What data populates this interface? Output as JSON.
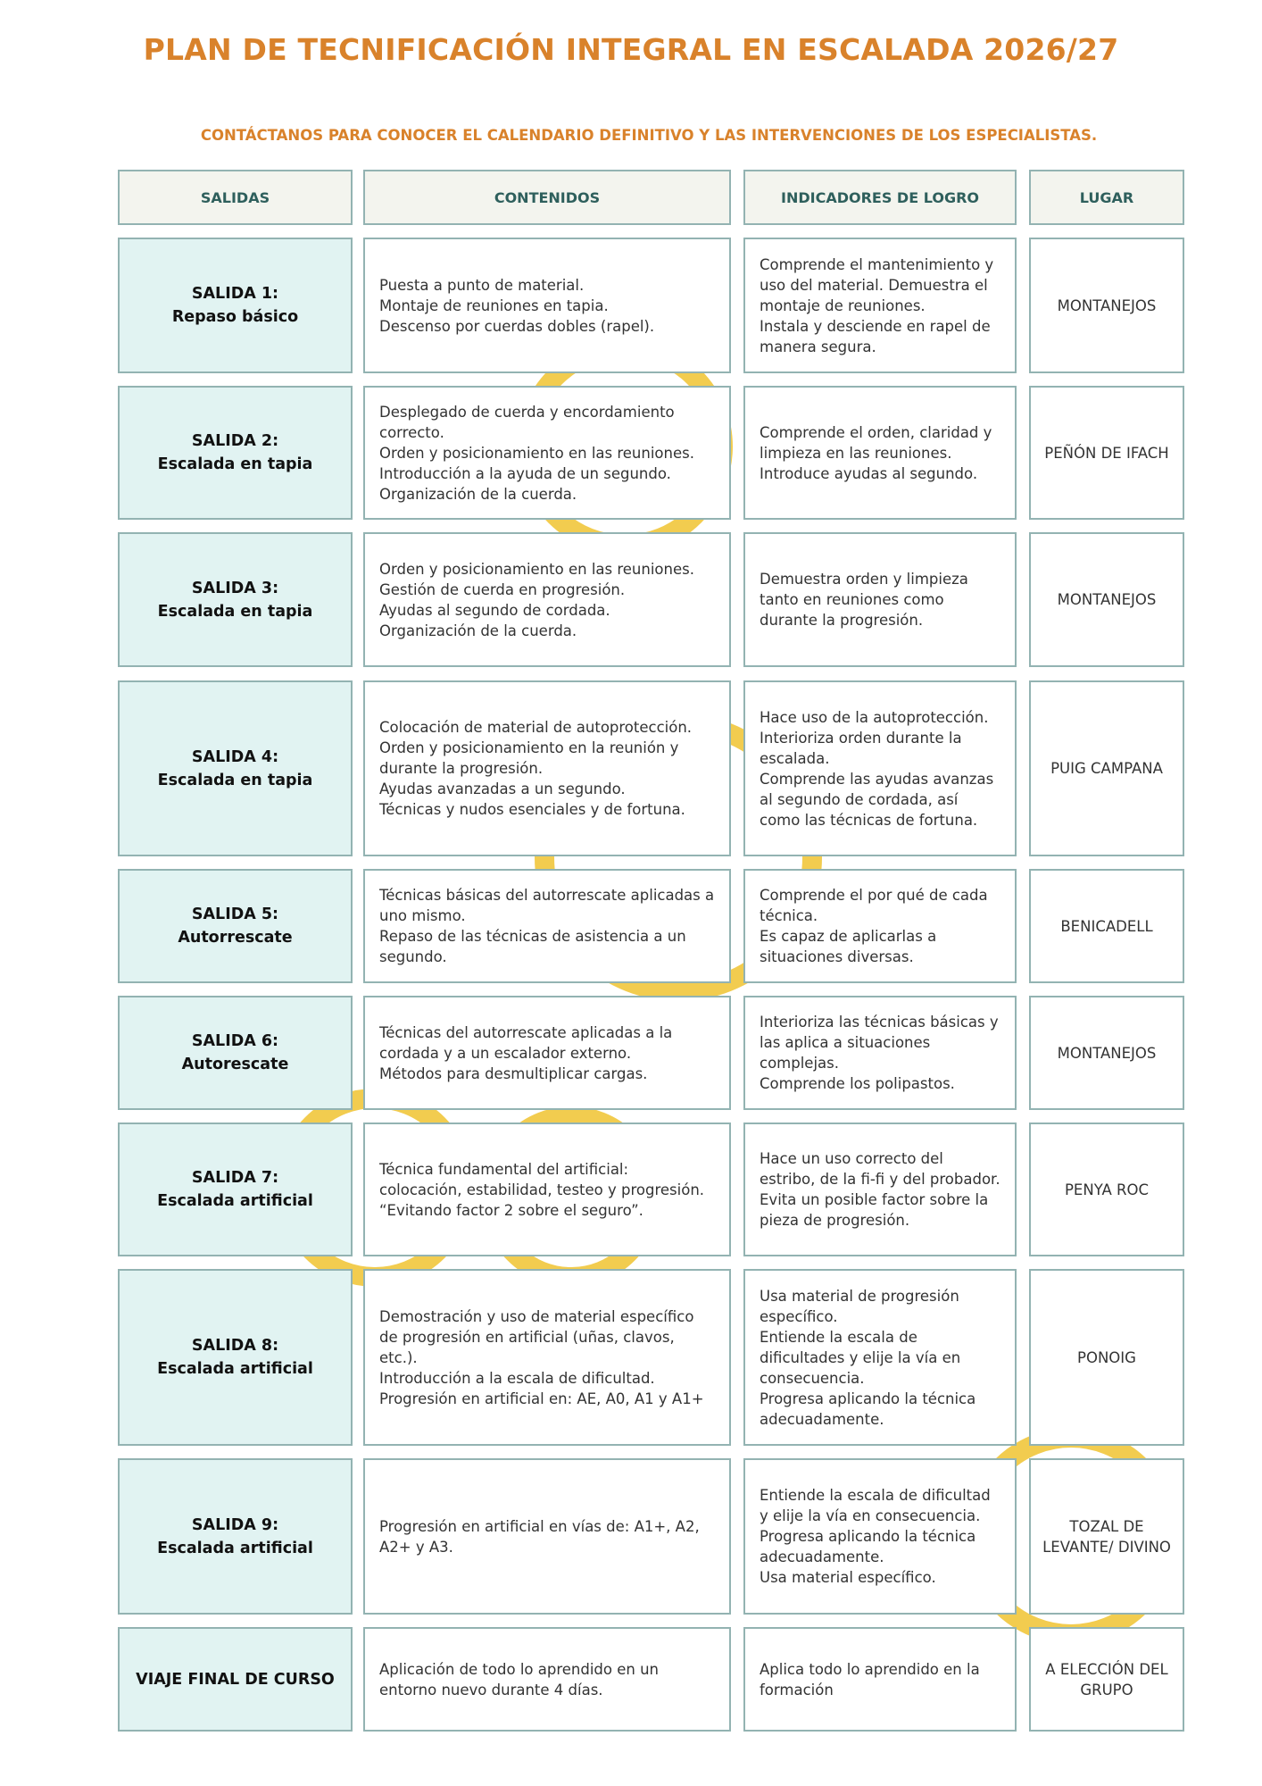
{
  "title": "PLAN DE TECNIFICACIÓN INTEGRAL EN ESCALADA 2026/27",
  "subtitle": "CONTÁCTANOS PARA CONOCER EL CALENDARIO DEFINITIVO Y LAS INTERVENCIONES DE LOS ESPECIALISTAS.",
  "colors": {
    "accent": "#d9822b",
    "header_text": "#2e5f5c",
    "header_bg": "#f3f4ee",
    "name_bg": "#e1f3f2",
    "border": "#93b3b2",
    "decoration": "#f2cc4f"
  },
  "headers": [
    "SALIDAS",
    "CONTENIDOS",
    "INDICADORES DE LOGRO",
    "LUGAR"
  ],
  "rows": [
    {
      "name": "SALIDA 1:\nRepaso básico",
      "contenidos": "Puesta a punto de material.\nMontaje de reuniones en tapia.\nDescenso por cuerdas dobles (rapel).",
      "indicadores": "Comprende el mantenimiento y uso del material. Demuestra el montaje de reuniones.\nInstala y desciende en rapel de manera segura.",
      "lugar": "MONTANEJOS"
    },
    {
      "name": "SALIDA 2:\nEscalada en tapia",
      "contenidos": "Desplegado de cuerda y encordamiento correcto.\nOrden y posicionamiento en las reuniones.\nIntroducción a la ayuda de un segundo.\nOrganización de la cuerda.",
      "indicadores": "Comprende el orden, claridad y limpieza en las reuniones.\nIntroduce ayudas al segundo.",
      "lugar": "PEÑÓN DE IFACH"
    },
    {
      "name": "SALIDA 3:\nEscalada en tapia",
      "contenidos": "Orden y posicionamiento en las reuniones.\nGestión de cuerda en progresión.\nAyudas al segundo de cordada.\nOrganización de la cuerda.",
      "indicadores": "Demuestra orden y limpieza tanto en reuniones como durante la progresión.",
      "lugar": "MONTANEJOS"
    },
    {
      "name": "SALIDA 4:\nEscalada en tapia",
      "contenidos": "Colocación de material de autoprotección.\nOrden y posicionamiento en la reunión y durante la progresión.\nAyudas avanzadas a un segundo.\nTécnicas y nudos esenciales y de fortuna.",
      "indicadores": "Hace uso de la autoprotección.\nInterioriza orden durante la escalada.\nComprende las ayudas avanzas al segundo de cordada, así como las técnicas de fortuna.",
      "lugar": "PUIG CAMPANA"
    },
    {
      "name": "SALIDA 5:\nAutorrescate",
      "contenidos": "Técnicas básicas del autorrescate aplicadas a uno mismo.\nRepaso de las técnicas de asistencia a un segundo.",
      "indicadores": "Comprende el por qué de cada técnica.\nEs capaz de aplicarlas a situaciones diversas.",
      "lugar": "BENICADELL"
    },
    {
      "name": "SALIDA 6:\nAutorescate",
      "contenidos": "Técnicas del autorrescate aplicadas a la cordada y a un escalador externo.\nMétodos para desmultiplicar cargas.",
      "indicadores": "Interioriza las técnicas básicas y las aplica a situaciones complejas.\nComprende los polipastos.",
      "lugar": "MONTANEJOS"
    },
    {
      "name": "SALIDA 7:\nEscalada artificial",
      "contenidos": "Técnica fundamental del artificial: colocación, estabilidad, testeo y progresión.\n“Evitando factor 2 sobre el seguro”.",
      "indicadores": "Hace un uso correcto del estribo, de la fi-fi y del probador.\nEvita un posible factor sobre la pieza de progresión.",
      "lugar": "PENYA ROC"
    },
    {
      "name": "SALIDA 8:\nEscalada artificial",
      "contenidos": "Demostración y uso de material específico de progresión en artificial (uñas, clavos, etc.).\nIntroducción a la escala de dificultad.\nProgresión en artificial en: AE, A0, A1 y A1+",
      "indicadores": "Usa material de progresión específico.\nEntiende la escala de dificultades y elije la vía en consecuencia.\nProgresa aplicando la técnica adecuadamente.",
      "lugar": "PONOIG"
    },
    {
      "name": "SALIDA 9:\nEscalada artificial",
      "contenidos": "Progresión en artificial en vías de: A1+, A2, A2+ y A3.",
      "indicadores": "Entiende la escala de dificultad y elije la vía en consecuencia.\nProgresa aplicando la técnica adecuadamente.\nUsa material específico.",
      "lugar": "TOZAL DE LEVANTE/ DIVINO"
    },
    {
      "name": "VIAJE FINAL DE CURSO",
      "contenidos": "Aplicación de todo lo aprendido en un entorno nuevo durante 4 días.",
      "indicadores": "Aplica todo lo aprendido en la formación",
      "lugar": "A ELECCIÓN DEL GRUPO"
    }
  ]
}
